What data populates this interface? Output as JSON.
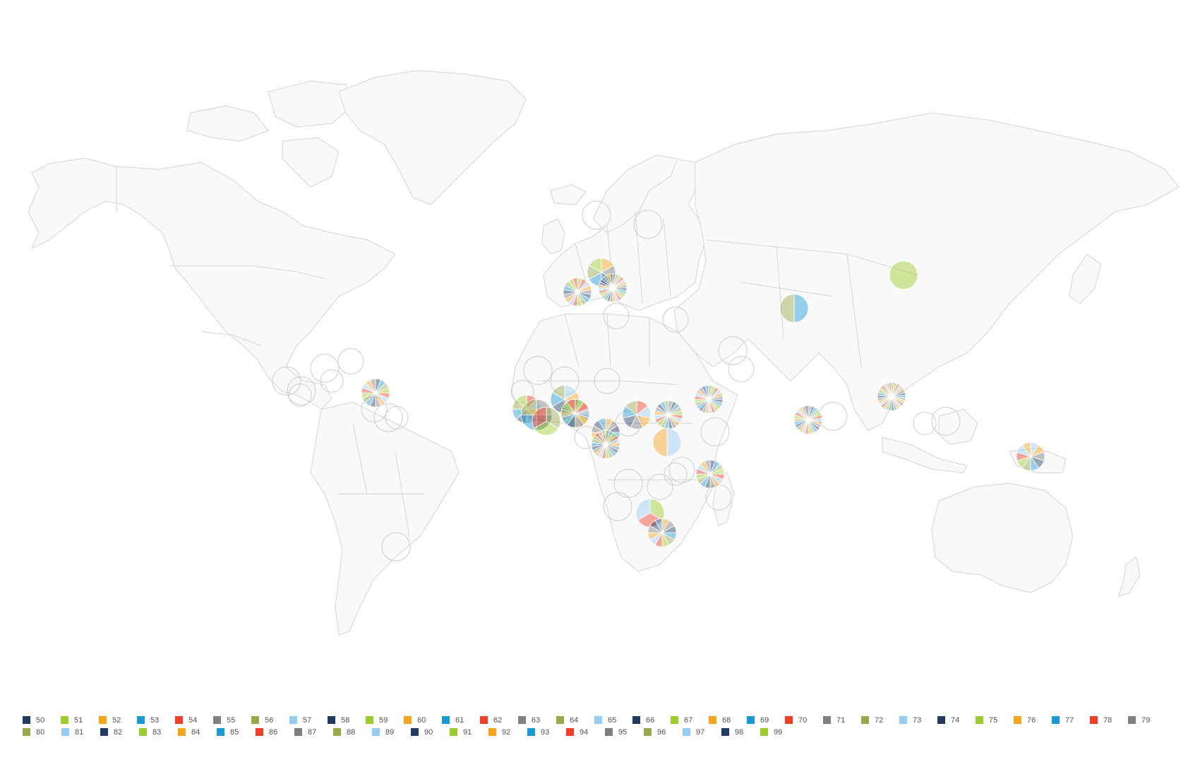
{
  "palette": [
    "#1f3b63",
    "#9ccc2a",
    "#f6a21b",
    "#199ad6",
    "#f33d25",
    "#7f7f7f",
    "#9aa84a",
    "#95ccf3"
  ],
  "legend": {
    "rows": [
      [
        "50",
        "51",
        "52",
        "53",
        "54",
        "55",
        "56",
        "57",
        "58",
        "59",
        "60",
        "61",
        "62",
        "63",
        "64",
        "65",
        "66",
        "67",
        "68",
        "69",
        "70",
        "71",
        "72",
        "73",
        "74",
        "75",
        "76",
        "77",
        "78",
        "79"
      ],
      [
        "80",
        "81",
        "82",
        "83",
        "84",
        "85",
        "86",
        "87",
        "88",
        "89",
        "90",
        "91",
        "92",
        "93",
        "94",
        "95",
        "96",
        "97",
        "98",
        "99"
      ]
    ]
  },
  "pies": [
    {
      "name": "caribbean",
      "slices": 16
    },
    {
      "name": "portugal-spain",
      "slices": 18
    },
    {
      "name": "france-belgium",
      "slices": 6
    },
    {
      "name": "italy-switzerland",
      "slices": 28
    },
    {
      "name": "senegal",
      "slices": 8
    },
    {
      "name": "guinea",
      "slices": 4
    },
    {
      "name": "sierra-leone",
      "slices": 3
    },
    {
      "name": "mali-burkina",
      "slices": 6
    },
    {
      "name": "ghana-nigeria",
      "slices": 30
    },
    {
      "name": "cameroon",
      "slices": 10
    },
    {
      "name": "gabon",
      "slices": 12
    },
    {
      "name": "congo",
      "slices": 22
    },
    {
      "name": "south-sudan",
      "slices": 7
    },
    {
      "name": "uganda-kenya",
      "slices": 20
    },
    {
      "name": "ethiopia",
      "slices": 24
    },
    {
      "name": "tanzania",
      "slices": 2
    },
    {
      "name": "malawi-mozambique",
      "slices": 16
    },
    {
      "name": "zambia",
      "slices": 3
    },
    {
      "name": "zimbabwe",
      "slices": 12
    },
    {
      "name": "afghanistan",
      "slices": 2
    },
    {
      "name": "mongolia",
      "slices": 1
    },
    {
      "name": "sri-lanka",
      "slices": 26
    },
    {
      "name": "thailand",
      "slices": 30
    },
    {
      "name": "papua-new-guinea",
      "slices": 10
    }
  ]
}
